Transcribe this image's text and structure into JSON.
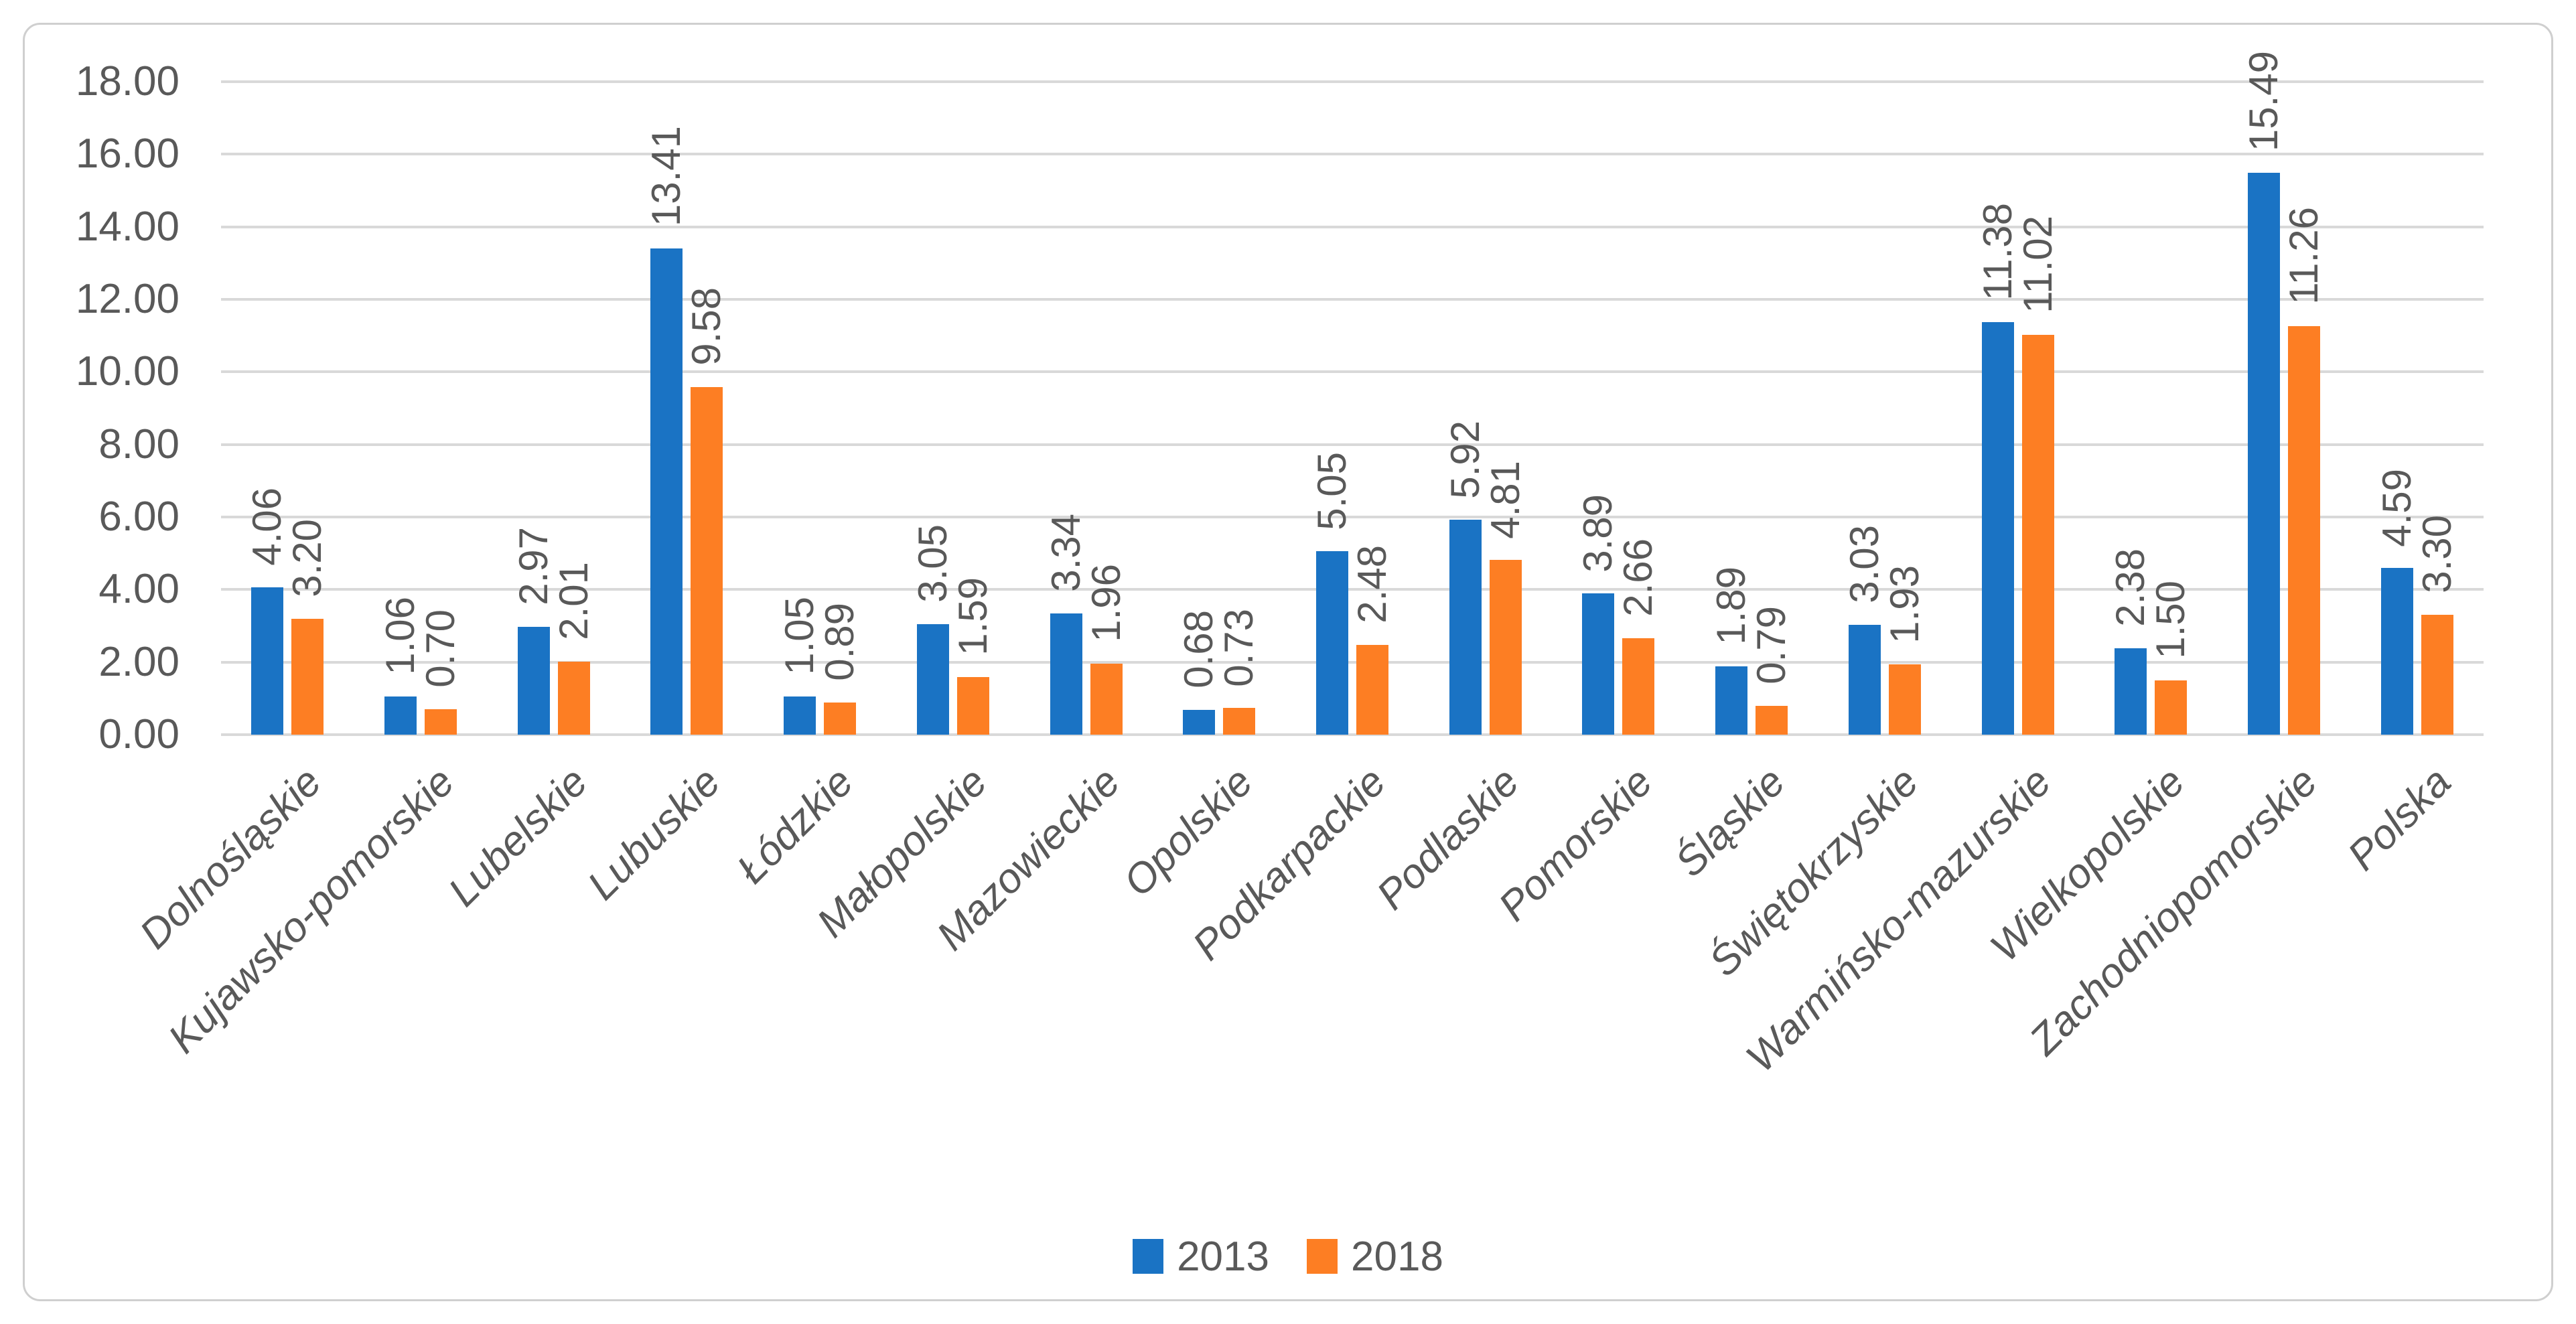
{
  "chart_data": {
    "type": "bar",
    "title": "",
    "categories": [
      "Dolnośląskie",
      "Kujawsko-pomorskie",
      "Lubelskie",
      "Lubuskie",
      "Łódzkie",
      "Małopolskie",
      "Mazowieckie",
      "Opolskie",
      "Podkarpackie",
      "Podlaskie",
      "Pomorskie",
      "Śląskie",
      "Świętokrzyskie",
      "Warmińsko-mazurskie",
      "Wielkopolskie",
      "Zachodniopomorskie",
      "Polska"
    ],
    "series": [
      {
        "name": "2013",
        "color": "#1A73C4",
        "values": [
          4.06,
          1.06,
          2.97,
          13.41,
          1.05,
          3.05,
          3.34,
          0.68,
          5.05,
          5.92,
          3.89,
          1.89,
          3.03,
          11.38,
          2.38,
          15.49,
          4.59
        ]
      },
      {
        "name": "2018",
        "color": "#FD7E23",
        "values": [
          3.2,
          0.7,
          2.01,
          9.58,
          0.89,
          1.59,
          1.96,
          0.73,
          2.48,
          4.81,
          2.66,
          0.79,
          1.93,
          11.02,
          1.5,
          11.26,
          3.3
        ]
      }
    ],
    "ylim": [
      0,
      18
    ],
    "ytick_step": 2,
    "y_tick_labels": [
      "0.00",
      "2.00",
      "4.00",
      "6.00",
      "8.00",
      "10.00",
      "12.00",
      "14.00",
      "16.00",
      "18.00"
    ],
    "grid": true,
    "legend_position": "bottom",
    "value_label_decimals": 2,
    "value_label_rotation_deg": -90,
    "category_label_rotation_deg": -45
  },
  "styles": {
    "grid_color": "#D9D9D9",
    "text_color": "#595959",
    "frame_border_color": "#CFCFCF",
    "background": "#FFFFFF",
    "series_2013_color": "#1A73C4",
    "series_2018_color": "#FD7E23"
  }
}
